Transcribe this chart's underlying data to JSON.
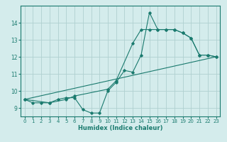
{
  "title": "",
  "xlabel": "Humidex (Indice chaleur)",
  "ylabel": "",
  "bg_color": "#d4ecec",
  "line_color": "#1a7a6e",
  "grid_color": "#b0d0d0",
  "xlim": [
    -0.5,
    23.5
  ],
  "ylim": [
    8.5,
    15.0
  ],
  "xticks": [
    0,
    1,
    2,
    3,
    4,
    5,
    6,
    7,
    8,
    9,
    10,
    11,
    12,
    13,
    14,
    15,
    16,
    17,
    18,
    19,
    20,
    21,
    22,
    23
  ],
  "yticks": [
    9,
    10,
    11,
    12,
    13,
    14
  ],
  "line1_x": [
    0,
    1,
    2,
    3,
    4,
    5,
    6,
    7,
    8,
    9,
    10,
    11,
    12,
    13,
    14,
    15,
    16,
    17,
    18,
    19,
    20,
    21,
    22,
    23
  ],
  "line1_y": [
    9.5,
    9.3,
    9.3,
    9.3,
    9.5,
    9.6,
    9.6,
    8.9,
    8.7,
    8.7,
    10.0,
    10.5,
    11.2,
    11.1,
    12.1,
    14.6,
    13.6,
    13.6,
    13.6,
    13.4,
    13.1,
    12.1,
    12.1,
    12.0
  ],
  "line2_x": [
    0,
    3,
    5,
    6,
    10,
    11,
    13,
    14,
    15,
    16,
    17,
    18,
    19,
    20,
    21,
    22,
    23
  ],
  "line2_y": [
    9.5,
    9.3,
    9.5,
    9.7,
    10.1,
    10.6,
    12.8,
    13.6,
    13.6,
    13.6,
    13.6,
    13.6,
    13.4,
    13.1,
    12.1,
    12.1,
    12.0
  ],
  "line3_x": [
    0,
    23
  ],
  "line3_y": [
    9.5,
    12.0
  ]
}
